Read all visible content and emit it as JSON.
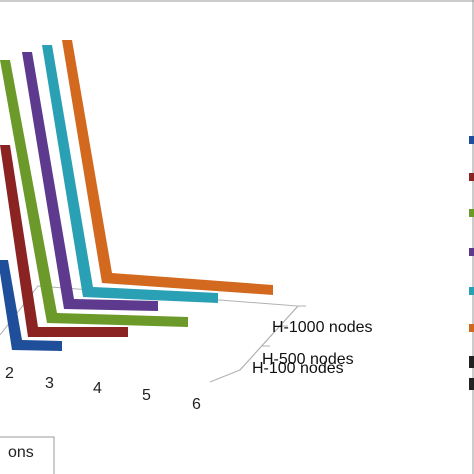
{
  "chart_data": {
    "type": "line",
    "view": "3d-perspective",
    "x_ticks": [
      "2",
      "3",
      "4",
      "5",
      "6"
    ],
    "depth_categories": [
      "H-100 nodes",
      "H-500 nodes",
      "H-1000 nodes"
    ],
    "axis_title_fragment": "ons",
    "legend": {
      "placement": "right",
      "entries_visible": 6,
      "label_text_visible": false
    },
    "series": [
      {
        "color": "#1f4e9a"
      },
      {
        "color": "#8b2323"
      },
      {
        "color": "#6b9a2a"
      },
      {
        "color": "#5e3a8f"
      },
      {
        "color": "#2aa0b5"
      },
      {
        "color": "#d2691e"
      }
    ]
  }
}
